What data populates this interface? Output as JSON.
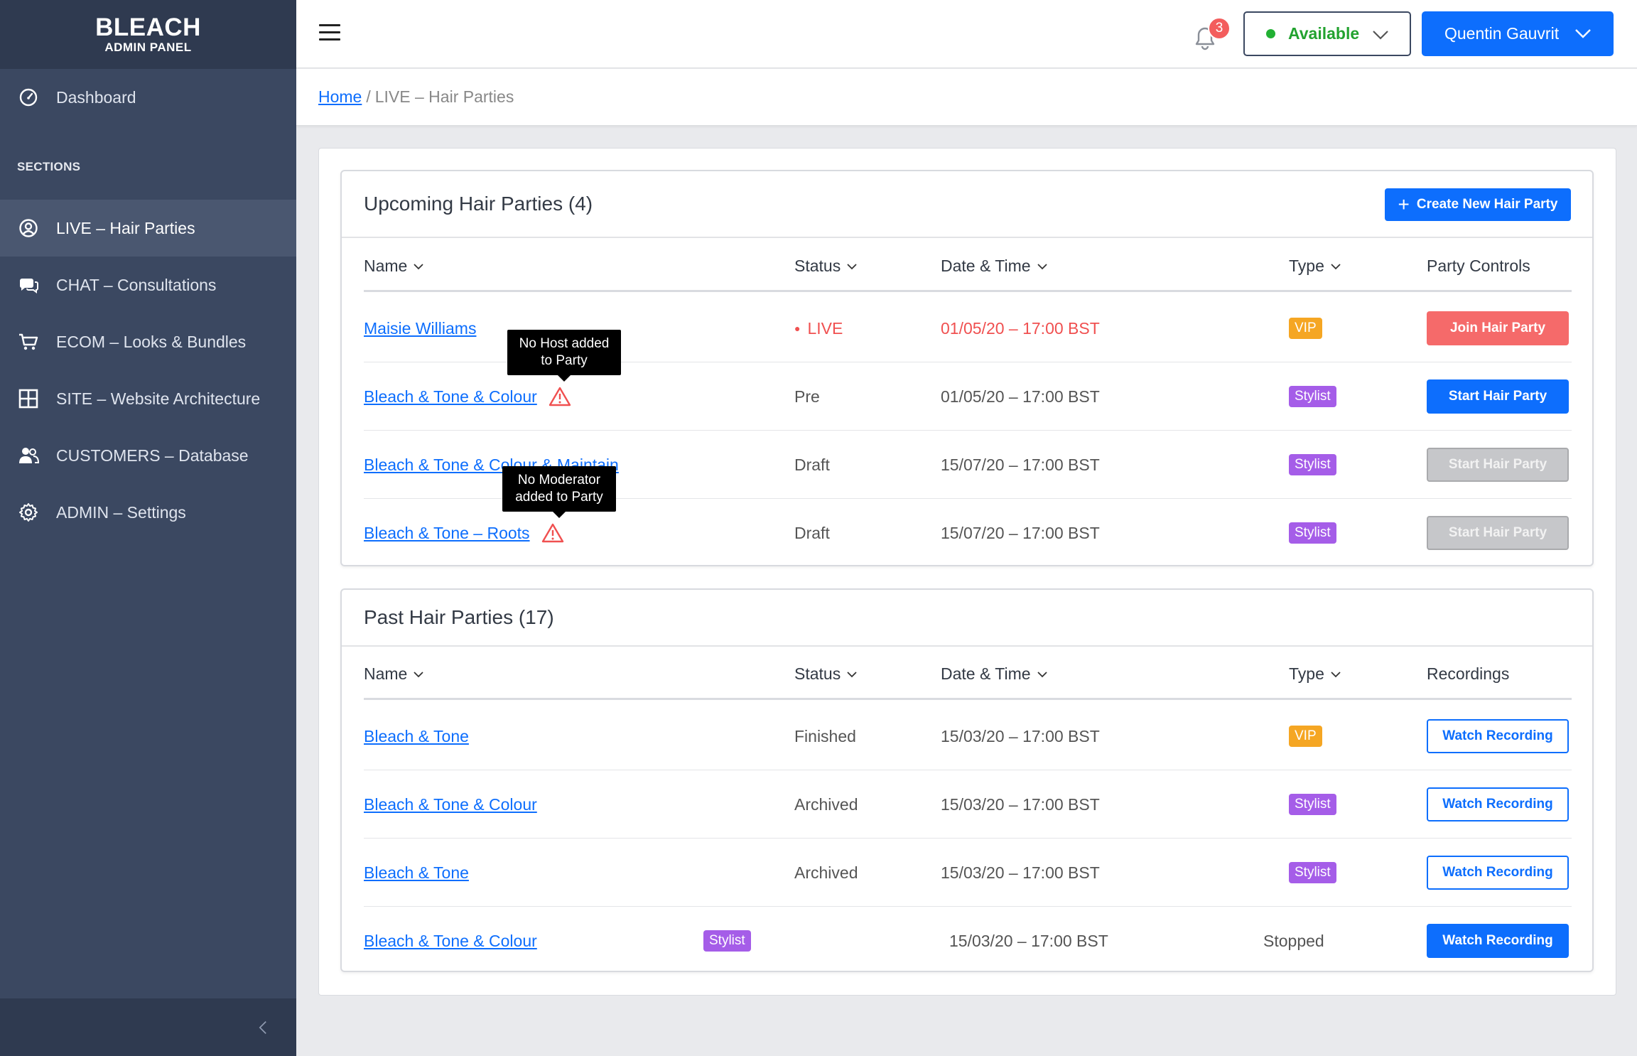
{
  "brand": {
    "title": "BLEACH",
    "subtitle": "ADMIN PANEL"
  },
  "sidebar": {
    "dashboard": "Dashboard",
    "sections_label": "SECTIONS",
    "items": [
      {
        "label": "LIVE – Hair Parties",
        "icon": "user-circle-icon"
      },
      {
        "label": "CHAT – Consultations",
        "icon": "chat-bubbles-icon"
      },
      {
        "label": "ECOM – Looks & Bundles",
        "icon": "cart-icon"
      },
      {
        "label": "SITE – Website Architecture",
        "icon": "layout-icon"
      },
      {
        "label": "CUSTOMERS – Database",
        "icon": "users-icon"
      },
      {
        "label": "ADMIN – Settings",
        "icon": "gear-icon"
      }
    ]
  },
  "topbar": {
    "notifications": "3",
    "status": "Available",
    "user": "Quentin Gauvrit"
  },
  "breadcrumb": {
    "home": "Home",
    "separator": "/",
    "current": "LIVE – Hair Parties"
  },
  "upcoming": {
    "title": "Upcoming Hair Parties (4)",
    "create_label": "Create New Hair Party",
    "headers": {
      "name": "Name",
      "status": "Status",
      "datetime": "Date & Time",
      "type": "Type",
      "controls": "Party Controls"
    },
    "rows": [
      {
        "name": "Maisie Williams",
        "status": "LIVE",
        "datetime": "01/05/20 – 17:00 BST",
        "type": "VIP",
        "action": "Join Hair Party"
      },
      {
        "name": "Bleach & Tone & Colour",
        "status": "Pre",
        "datetime": "01/05/20 – 17:00 BST",
        "type": "Stylist",
        "action": "Start Hair Party"
      },
      {
        "name": "Bleach & Tone & Colour & Maintain",
        "status": "Draft",
        "datetime": "15/07/20 – 17:00 BST",
        "type": "Stylist",
        "action": "Start Hair Party"
      },
      {
        "name": "Bleach & Tone – Roots",
        "status": "Draft",
        "datetime": "15/07/20 – 17:00 BST",
        "type": "Stylist",
        "action": "Start Hair Party"
      }
    ],
    "tooltips": {
      "no_host": "No Host added to Party",
      "no_moderator": "No Moderator added to Party"
    }
  },
  "past": {
    "title": "Past Hair Parties (17)",
    "headers": {
      "name": "Name",
      "status": "Status",
      "datetime": "Date & Time",
      "type": "Type",
      "recordings": "Recordings"
    },
    "rows": [
      {
        "name": "Bleach & Tone",
        "status": "Finished",
        "datetime": "15/03/20 – 17:00 BST",
        "type": "VIP",
        "action": "Watch Recording"
      },
      {
        "name": "Bleach & Tone & Colour",
        "status": "Archived",
        "datetime": "15/03/20 – 17:00 BST",
        "type": "Stylist",
        "action": "Watch Recording"
      },
      {
        "name": "Bleach & Tone",
        "status": "Archived",
        "datetime": "15/03/20 – 17:00 BST",
        "type": "Stylist",
        "action": "Watch Recording"
      },
      {
        "name": "Bleach & Tone & Colour",
        "status": "Stopped",
        "datetime": "15/03/20 – 17:00 BST",
        "type": "Stylist",
        "action": "Watch Recording"
      }
    ]
  },
  "colors": {
    "primary": "#0d6efd",
    "sidebar": "#3b4861",
    "live": "#f05050",
    "vip": "#f5a623",
    "stylist": "#a55de8",
    "available": "#22b033"
  }
}
